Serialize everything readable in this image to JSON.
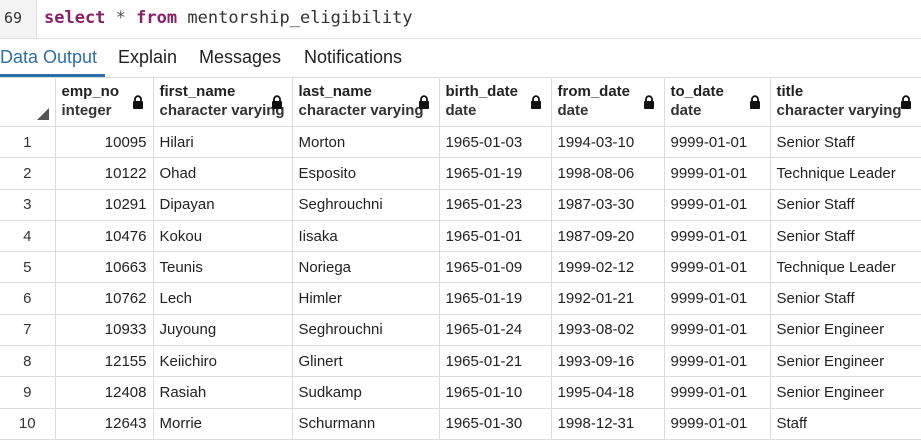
{
  "editor": {
    "line_number": "69",
    "kw_select": "select",
    "star": "*",
    "kw_from": "from",
    "table_name": "mentorship_eligibility"
  },
  "tabs": [
    {
      "label": "Data Output"
    },
    {
      "label": "Explain"
    },
    {
      "label": "Messages"
    },
    {
      "label": "Notifications"
    }
  ],
  "columns": [
    {
      "name": "emp_no",
      "type": "integer"
    },
    {
      "name": "first_name",
      "type": "character varying"
    },
    {
      "name": "last_name",
      "type": "character varying"
    },
    {
      "name": "birth_date",
      "type": "date"
    },
    {
      "name": "from_date",
      "type": "date"
    },
    {
      "name": "to_date",
      "type": "date"
    },
    {
      "name": "title",
      "type": "character varying"
    }
  ],
  "rows": [
    {
      "n": "1",
      "emp_no": "10095",
      "first_name": "Hilari",
      "last_name": "Morton",
      "birth_date": "1965-01-03",
      "from_date": "1994-03-10",
      "to_date": "9999-01-01",
      "title": "Senior Staff"
    },
    {
      "n": "2",
      "emp_no": "10122",
      "first_name": "Ohad",
      "last_name": "Esposito",
      "birth_date": "1965-01-19",
      "from_date": "1998-08-06",
      "to_date": "9999-01-01",
      "title": "Technique Leader"
    },
    {
      "n": "3",
      "emp_no": "10291",
      "first_name": "Dipayan",
      "last_name": "Seghrouchni",
      "birth_date": "1965-01-23",
      "from_date": "1987-03-30",
      "to_date": "9999-01-01",
      "title": "Senior Staff"
    },
    {
      "n": "4",
      "emp_no": "10476",
      "first_name": "Kokou",
      "last_name": "Iisaka",
      "birth_date": "1965-01-01",
      "from_date": "1987-09-20",
      "to_date": "9999-01-01",
      "title": "Senior Staff"
    },
    {
      "n": "5",
      "emp_no": "10663",
      "first_name": "Teunis",
      "last_name": "Noriega",
      "birth_date": "1965-01-09",
      "from_date": "1999-02-12",
      "to_date": "9999-01-01",
      "title": "Technique Leader"
    },
    {
      "n": "6",
      "emp_no": "10762",
      "first_name": "Lech",
      "last_name": "Himler",
      "birth_date": "1965-01-19",
      "from_date": "1992-01-21",
      "to_date": "9999-01-01",
      "title": "Senior Staff"
    },
    {
      "n": "7",
      "emp_no": "10933",
      "first_name": "Juyoung",
      "last_name": "Seghrouchni",
      "birth_date": "1965-01-24",
      "from_date": "1993-08-02",
      "to_date": "9999-01-01",
      "title": "Senior Engineer"
    },
    {
      "n": "8",
      "emp_no": "12155",
      "first_name": "Keiichiro",
      "last_name": "Glinert",
      "birth_date": "1965-01-21",
      "from_date": "1993-09-16",
      "to_date": "9999-01-01",
      "title": "Senior Engineer"
    },
    {
      "n": "9",
      "emp_no": "12408",
      "first_name": "Rasiah",
      "last_name": "Sudkamp",
      "birth_date": "1965-01-10",
      "from_date": "1995-04-18",
      "to_date": "9999-01-01",
      "title": "Senior Engineer"
    },
    {
      "n": "10",
      "emp_no": "12643",
      "first_name": "Morrie",
      "last_name": "Schurmann",
      "birth_date": "1965-01-30",
      "from_date": "1998-12-31",
      "to_date": "9999-01-01",
      "title": "Staff"
    }
  ],
  "colors": {
    "accent": "#2c6fa8",
    "keyword": "#8a1f6a"
  }
}
